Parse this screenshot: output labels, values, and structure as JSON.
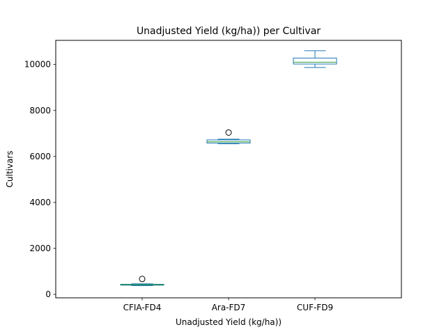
{
  "chart_data": {
    "type": "box",
    "title": "Unadjusted Yield (kg/ha)) per Cultivar",
    "xlabel": "Unadjusted Yield (kg/ha))",
    "ylabel": "Cultivars",
    "ylim": [
      -150,
      11050
    ],
    "yticks": [
      0,
      2000,
      4000,
      6000,
      8000,
      10000
    ],
    "yticklabels": [
      "0",
      "2000",
      "4000",
      "6000",
      "8000",
      "10000"
    ],
    "grid": false,
    "legend": "none",
    "categories": [
      "CFIA-FD4",
      "Ara-FD7",
      "CUF-FD9"
    ],
    "boxes": [
      {
        "category": "CFIA-FD4",
        "whislo": 380,
        "q1": 400,
        "med": 420,
        "q3": 440,
        "whishi": 460,
        "fliers": [
          670
        ]
      },
      {
        "category": "Ara-FD7",
        "whislo": 6550,
        "q1": 6580,
        "med": 6640,
        "q3": 6720,
        "whishi": 6750,
        "fliers": [
          7040
        ]
      },
      {
        "category": "CUF-FD9",
        "whislo": 9870,
        "q1": 10020,
        "med": 10100,
        "q3": 10280,
        "whishi": 10600,
        "fliers": []
      }
    ],
    "colors": {
      "box": "#1f77b4",
      "whisker": "#1f77b4",
      "median": "#2ca02c",
      "flier_edge": "#000000"
    }
  }
}
